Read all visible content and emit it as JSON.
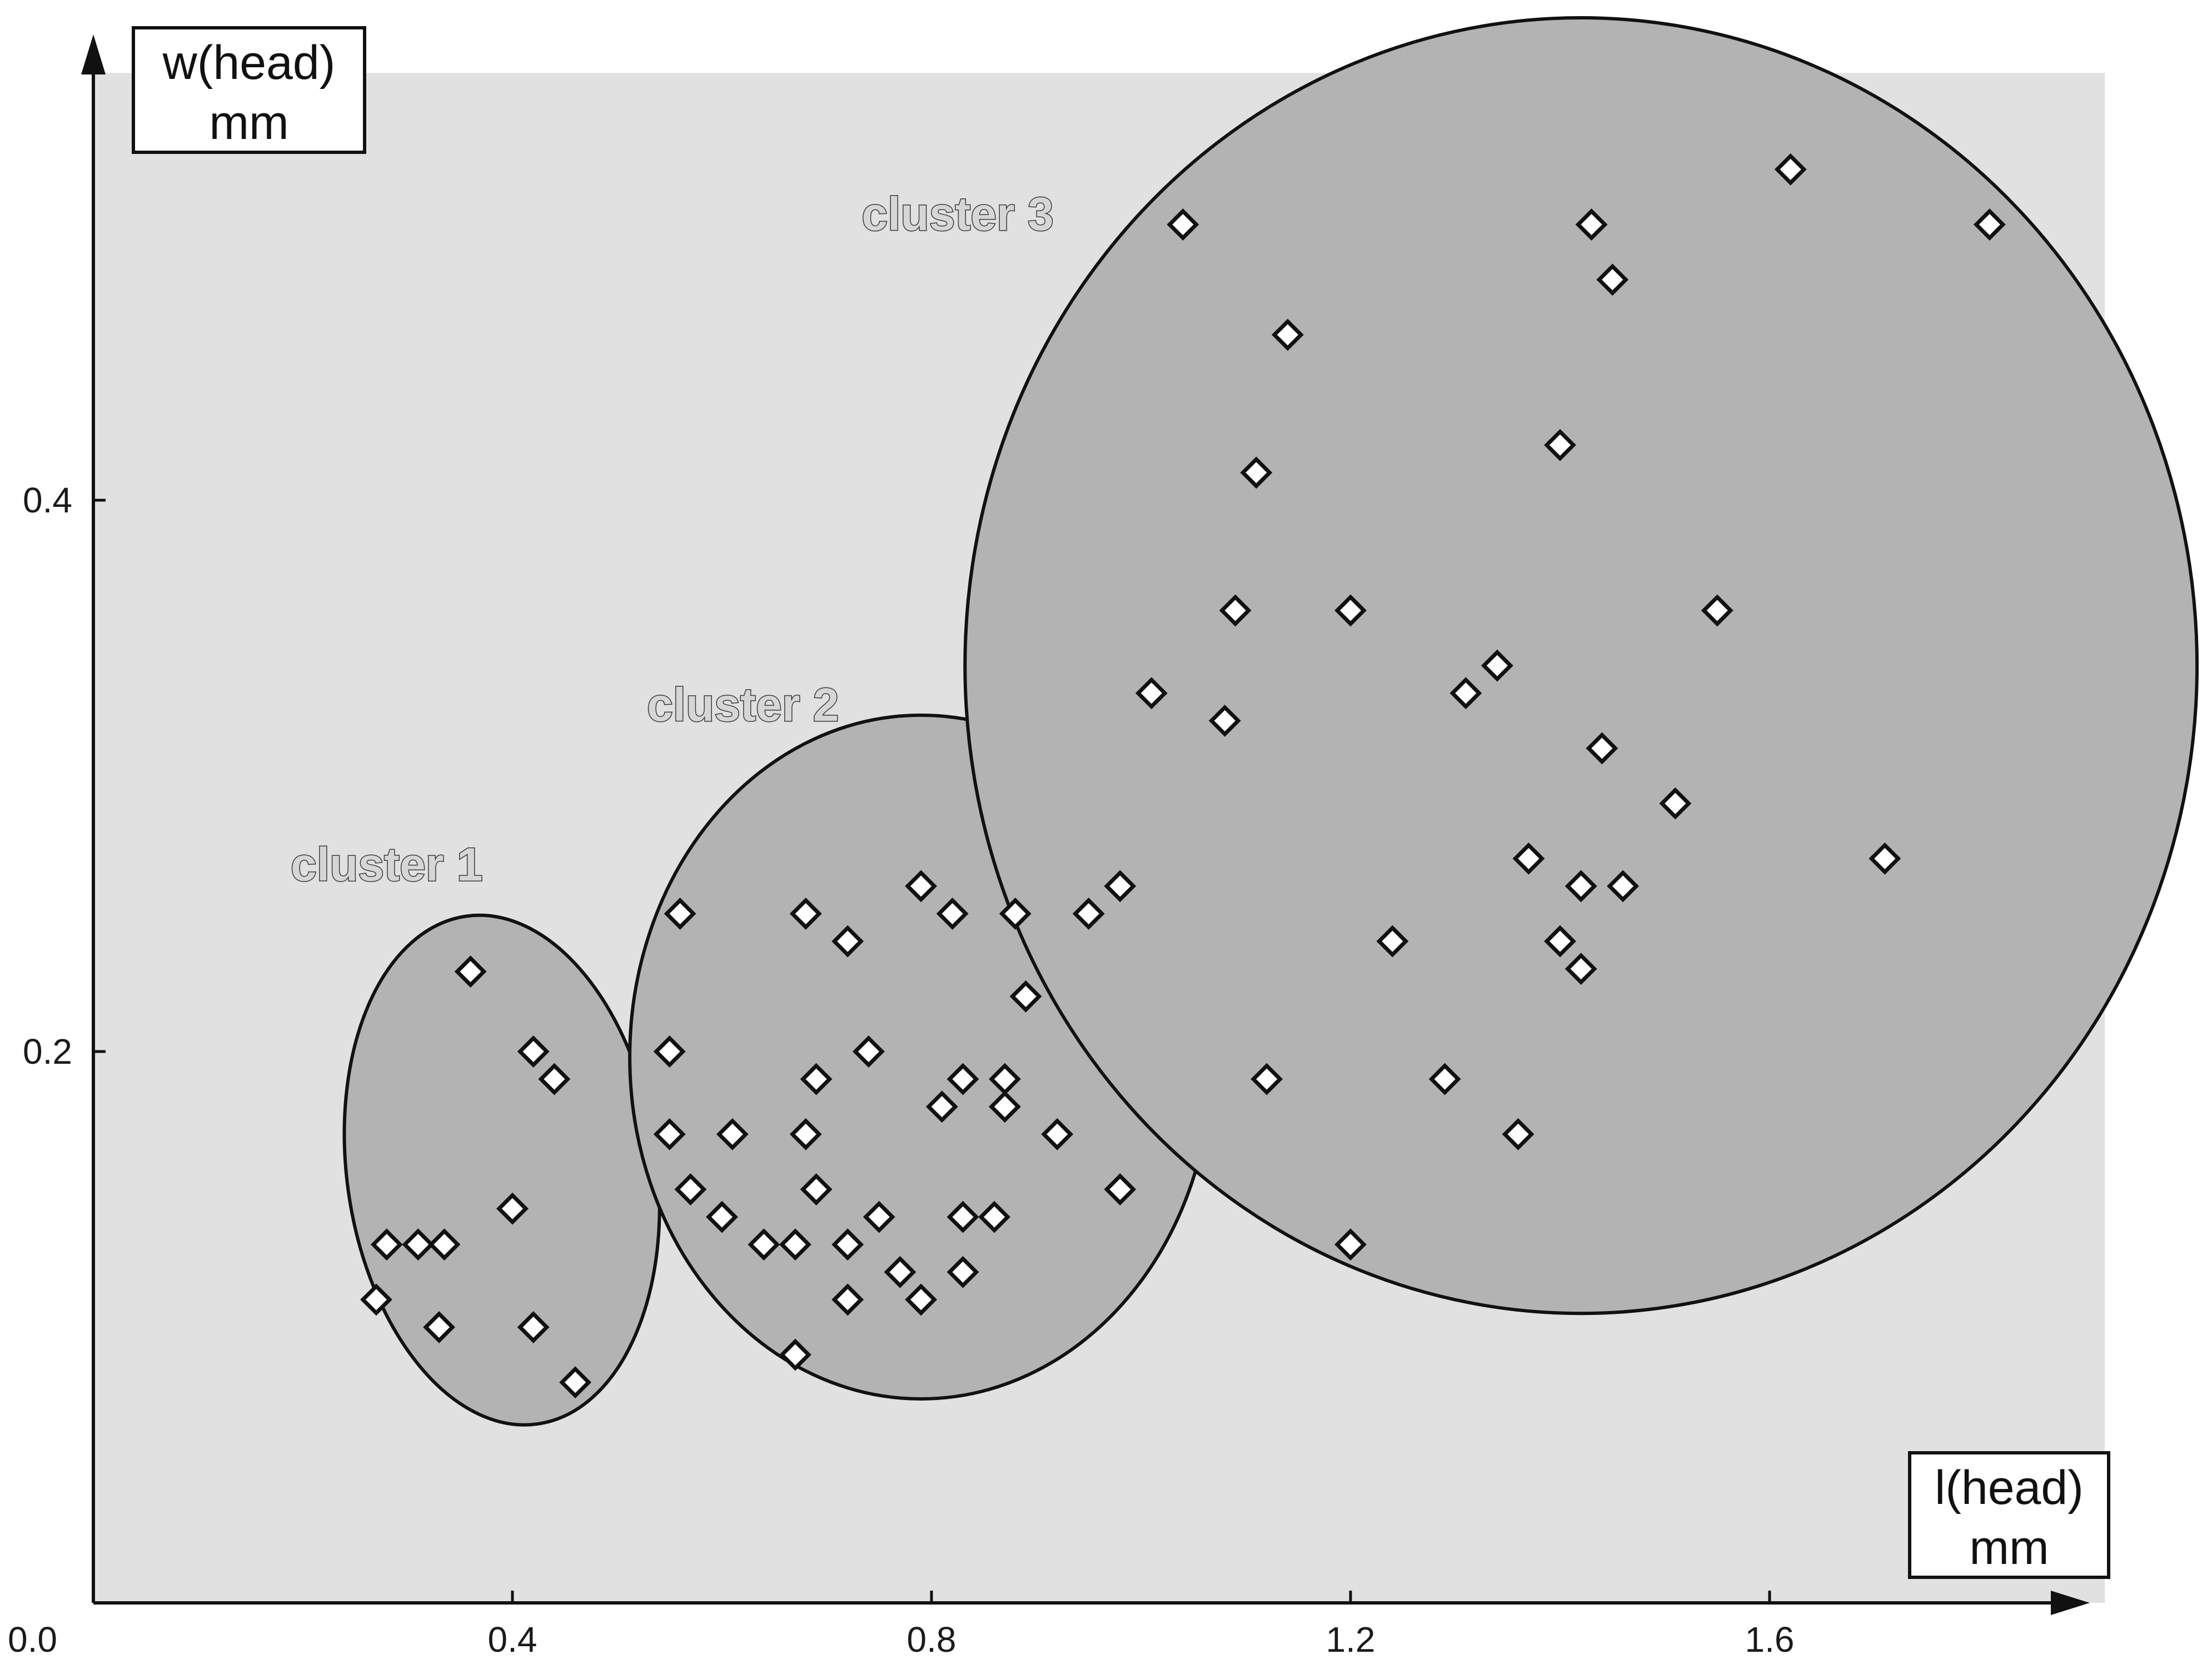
{
  "chart_data": {
    "type": "scatter",
    "x_axis_label": [
      "l(head)",
      "mm"
    ],
    "y_axis_label": [
      "w(head)",
      "mm"
    ],
    "origin_label": "0.0",
    "x_ticks": [
      {
        "value": 0.4,
        "label": "0.4"
      },
      {
        "value": 0.8,
        "label": "0.8"
      },
      {
        "value": 1.2,
        "label": "1.2"
      },
      {
        "value": 1.6,
        "label": "1.6"
      }
    ],
    "y_ticks": [
      {
        "value": 0.2,
        "label": "0.2"
      },
      {
        "value": 0.4,
        "label": "0.4"
      }
    ],
    "xlim": [
      0.0,
      1.92
    ],
    "ylim": [
      0.0,
      0.555
    ],
    "grid": false,
    "colors": {
      "plot_background": "#e1e1e1",
      "cluster_fill": "#b3b3b3",
      "outline": "#111111",
      "marker_fill": "#ffffff"
    },
    "clusters": [
      {
        "label": "cluster 1",
        "label_pos": [
          0.28,
          0.262
        ],
        "ellipse": {
          "cx": 0.39,
          "cy": 0.157,
          "rx": 0.148,
          "ry": 0.093,
          "rotation_deg": -8
        },
        "points": [
          [
            0.36,
            0.229
          ],
          [
            0.42,
            0.2
          ],
          [
            0.44,
            0.19
          ],
          [
            0.4,
            0.143
          ],
          [
            0.28,
            0.13
          ],
          [
            0.31,
            0.13
          ],
          [
            0.335,
            0.13
          ],
          [
            0.27,
            0.11
          ],
          [
            0.33,
            0.1
          ],
          [
            0.42,
            0.1
          ],
          [
            0.46,
            0.08
          ]
        ]
      },
      {
        "label": "cluster 2",
        "label_pos": [
          0.62,
          0.32
        ],
        "ellipse": {
          "cx": 0.79,
          "cy": 0.198,
          "rx": 0.278,
          "ry": 0.124,
          "rotation_deg": 0
        },
        "points": [
          [
            0.56,
            0.25
          ],
          [
            0.68,
            0.25
          ],
          [
            0.72,
            0.24
          ],
          [
            0.79,
            0.26
          ],
          [
            0.82,
            0.25
          ],
          [
            0.88,
            0.25
          ],
          [
            0.95,
            0.25
          ],
          [
            0.98,
            0.26
          ],
          [
            0.89,
            0.22
          ],
          [
            0.55,
            0.2
          ],
          [
            0.74,
            0.2
          ],
          [
            0.69,
            0.19
          ],
          [
            0.83,
            0.19
          ],
          [
            0.87,
            0.19
          ],
          [
            0.81,
            0.18
          ],
          [
            0.87,
            0.18
          ],
          [
            0.55,
            0.17
          ],
          [
            0.61,
            0.17
          ],
          [
            0.68,
            0.17
          ],
          [
            0.92,
            0.17
          ],
          [
            0.57,
            0.15
          ],
          [
            0.69,
            0.15
          ],
          [
            0.98,
            0.15
          ],
          [
            0.6,
            0.14
          ],
          [
            0.75,
            0.14
          ],
          [
            0.83,
            0.14
          ],
          [
            0.86,
            0.14
          ],
          [
            0.64,
            0.13
          ],
          [
            0.67,
            0.13
          ],
          [
            0.72,
            0.13
          ],
          [
            0.77,
            0.12
          ],
          [
            0.83,
            0.12
          ],
          [
            0.72,
            0.11
          ],
          [
            0.79,
            0.11
          ],
          [
            0.67,
            0.09
          ]
        ]
      },
      {
        "label": "cluster 3",
        "label_pos": [
          0.825,
          0.498
        ],
        "ellipse": {
          "cx": 1.42,
          "cy": 0.34,
          "rx": 0.588,
          "ry": 0.235,
          "rotation_deg": 0
        },
        "points": [
          [
            1.62,
            0.52
          ],
          [
            1.04,
            0.5
          ],
          [
            1.43,
            0.5
          ],
          [
            1.81,
            0.5
          ],
          [
            1.45,
            0.48
          ],
          [
            1.14,
            0.46
          ],
          [
            1.4,
            0.42
          ],
          [
            1.11,
            0.41
          ],
          [
            1.09,
            0.36
          ],
          [
            1.2,
            0.36
          ],
          [
            1.55,
            0.36
          ],
          [
            1.34,
            0.34
          ],
          [
            1.01,
            0.33
          ],
          [
            1.31,
            0.33
          ],
          [
            1.08,
            0.32
          ],
          [
            1.44,
            0.31
          ],
          [
            1.51,
            0.29
          ],
          [
            1.37,
            0.27
          ],
          [
            1.71,
            0.27
          ],
          [
            1.42,
            0.26
          ],
          [
            1.46,
            0.26
          ],
          [
            1.24,
            0.24
          ],
          [
            1.4,
            0.24
          ],
          [
            1.42,
            0.23
          ],
          [
            1.12,
            0.19
          ],
          [
            1.29,
            0.19
          ],
          [
            1.36,
            0.17
          ],
          [
            1.2,
            0.13
          ]
        ]
      }
    ]
  }
}
